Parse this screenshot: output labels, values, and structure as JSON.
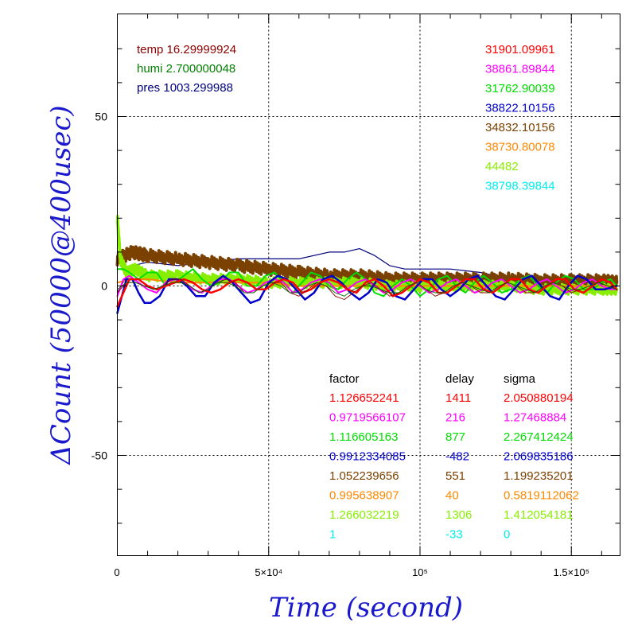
{
  "chart_data": {
    "type": "line",
    "xlabel": "Time (second)",
    "ylabel": "ΔCount (50000@400usec)",
    "xlim": [
      0,
      165000
    ],
    "ylim": [
      -80,
      80
    ],
    "x_ticks": [
      {
        "value": 0,
        "label": "0"
      },
      {
        "value": 50000,
        "label": "5×10⁴"
      },
      {
        "value": 100000,
        "label": "10⁵"
      },
      {
        "value": 150000,
        "label": "1.5×10⁵"
      }
    ],
    "y_ticks": [
      {
        "value": 50,
        "label": "50"
      },
      {
        "value": 0,
        "label": "0"
      },
      {
        "value": -50,
        "label": "-50"
      }
    ],
    "grid": true,
    "env": [
      {
        "text": "temp 16.29999924",
        "color": "#8b0000"
      },
      {
        "text": "humi 2.700000048",
        "color": "#008000"
      },
      {
        "text": "pres 1003.299988",
        "color": "#000080"
      }
    ],
    "means": [
      {
        "text": "31901.09961",
        "color": "#ff0000"
      },
      {
        "text": "38861.89844",
        "color": "#ff00ff"
      },
      {
        "text": "31762.90039",
        "color": "#00dd00"
      },
      {
        "text": "38822.10156",
        "color": "#0000cc"
      },
      {
        "text": "34832.10156",
        "color": "#7a4100"
      },
      {
        "text": "38730.80078",
        "color": "#ff8800"
      },
      {
        "text": "44482",
        "color": "#88ee00"
      },
      {
        "text": "38798.39844",
        "color": "#00eeee"
      }
    ],
    "table_headers": [
      "factor",
      "delay",
      "sigma"
    ],
    "table": [
      {
        "factor": "1.126652241",
        "delay": "1411",
        "sigma": "2.050880194",
        "color": "#ff0000"
      },
      {
        "factor": "0.9719566107",
        "delay": "216",
        "sigma": "1.27468884",
        "color": "#ff00ff"
      },
      {
        "factor": "1.116605163",
        "delay": "877",
        "sigma": "2.267412424",
        "color": "#00dd00"
      },
      {
        "factor": "0.9912334085",
        "delay": "-482",
        "sigma": "2.069835186",
        "color": "#0000cc"
      },
      {
        "factor": "1.052239656",
        "delay": "551",
        "sigma": "1.199235201",
        "color": "#7a4100"
      },
      {
        "factor": "0.995638907",
        "delay": "40",
        "sigma": "0.5819112062",
        "color": "#ff8800"
      },
      {
        "factor": "1.266032219",
        "delay": "1306",
        "sigma": "1.412054181",
        "color": "#88ee00"
      },
      {
        "factor": "1",
        "delay": "-33",
        "sigma": "0",
        "color": "#00eeee"
      }
    ],
    "series": [
      {
        "color": "#000080",
        "width": 1.2,
        "x": [
          0,
          5000,
          10000,
          20000,
          30000,
          40000,
          50000,
          60000,
          70000,
          75000,
          80000,
          85000,
          90000,
          95000,
          100000,
          110000,
          120000,
          130000,
          140000,
          150000,
          160000,
          165000
        ],
        "y": [
          -2,
          6,
          7,
          6,
          7,
          8,
          8,
          8,
          10,
          10,
          11,
          9,
          6,
          5,
          5,
          5,
          4,
          2,
          2,
          2,
          2,
          2
        ]
      },
      {
        "color": "#7a4100",
        "width": 4,
        "amp": 1.8,
        "x": [
          0,
          5000,
          10000,
          20000,
          30000,
          40000,
          50000,
          60000,
          70000,
          80000,
          90000,
          100000,
          110000,
          120000,
          130000,
          140000,
          150000,
          160000,
          165000
        ],
        "y": [
          8,
          10,
          9,
          8,
          7,
          6,
          5,
          4,
          3,
          3,
          2,
          2,
          2,
          2,
          2,
          1.5,
          1.5,
          1.5,
          1
        ]
      },
      {
        "color": "#88ee00",
        "width": 3.5,
        "amp": 1.5,
        "x": [
          0,
          1000,
          3000,
          6000,
          10000,
          20000,
          30000,
          40000,
          50000,
          60000,
          70000,
          80000,
          90000,
          100000,
          110000,
          120000,
          130000,
          140000,
          150000,
          160000,
          165000
        ],
        "y": [
          20,
          8,
          4,
          5,
          3,
          3,
          2,
          2,
          1,
          1,
          1,
          1,
          0,
          0,
          0,
          0,
          0,
          -1,
          -1,
          -1,
          -1
        ]
      },
      {
        "color": "#ff8800",
        "width": 2,
        "x": [
          0,
          5000,
          10000,
          20000,
          30000,
          40000,
          50000,
          60000,
          70000,
          80000,
          90000,
          100000,
          110000,
          120000,
          130000,
          140000,
          150000,
          160000,
          165000
        ],
        "y": [
          1,
          2,
          2,
          1,
          1,
          1,
          1,
          0,
          0,
          0,
          0,
          0,
          0,
          0,
          0,
          0,
          0,
          0,
          0
        ]
      },
      {
        "color": "#00dd00",
        "width": 2,
        "x": [
          0,
          2000,
          4000,
          7000,
          10000,
          13000,
          16000,
          19000,
          22000,
          25000,
          28000,
          31000,
          34000,
          37000,
          40000,
          43000,
          46000,
          49000,
          52000,
          55000,
          58000,
          61000,
          64000,
          67000,
          70000,
          73000,
          76000,
          79000,
          82000,
          85000,
          88000,
          91000,
          94000,
          97000,
          100000,
          103000,
          106000,
          109000,
          112000,
          115000,
          118000,
          121000,
          124000,
          127000,
          130000,
          133000,
          136000,
          139000,
          142000,
          145000,
          148000,
          151000,
          154000,
          157000,
          160000,
          163000,
          165000
        ],
        "y": [
          5,
          5,
          4,
          2,
          4,
          4,
          0,
          1,
          3,
          5,
          2,
          0,
          1,
          4,
          4,
          0,
          0,
          3,
          4,
          1,
          -2,
          1,
          4,
          3,
          0,
          -1,
          2,
          4,
          2,
          -2,
          -3,
          0,
          2,
          0,
          -3,
          -1,
          2,
          3,
          0,
          -2,
          1,
          3,
          1,
          -2,
          -1,
          2,
          3,
          0,
          -2,
          1,
          3,
          2,
          -1,
          -1,
          1,
          2,
          0
        ]
      },
      {
        "color": "#ff00ff",
        "width": 2,
        "x": [
          0,
          2000,
          4000,
          7000,
          10000,
          13000,
          16000,
          19000,
          22000,
          25000,
          28000,
          31000,
          34000,
          37000,
          40000,
          43000,
          46000,
          49000,
          52000,
          55000,
          58000,
          61000,
          64000,
          67000,
          70000,
          73000,
          76000,
          79000,
          82000,
          85000,
          88000,
          91000,
          94000,
          97000,
          100000,
          103000,
          106000,
          109000,
          112000,
          115000,
          118000,
          121000,
          124000,
          127000,
          130000,
          133000,
          136000,
          139000,
          142000,
          145000,
          148000,
          151000,
          154000,
          157000,
          160000,
          163000,
          165000
        ],
        "y": [
          -3,
          2,
          3,
          1,
          -1,
          -2,
          1,
          2,
          1,
          -1,
          -2,
          0,
          2,
          2,
          0,
          -2,
          -1,
          1,
          2,
          1,
          -2,
          -1,
          1,
          2,
          1,
          -2,
          -1,
          1,
          2,
          0,
          -2,
          -1,
          1,
          2,
          0,
          -2,
          -1,
          1,
          2,
          0,
          -2,
          -1,
          1,
          2,
          0,
          -2,
          -1,
          1,
          2,
          0,
          -2,
          -1,
          1,
          2,
          0,
          -1,
          -1
        ]
      },
      {
        "color": "#0000cc",
        "width": 2.5,
        "x": [
          0,
          1500,
          3000,
          5000,
          7000,
          9000,
          11000,
          14000,
          17000,
          20000,
          23000,
          26000,
          29000,
          32000,
          35000,
          38000,
          41000,
          44000,
          47000,
          50000,
          53000,
          56000,
          59000,
          62000,
          65000,
          68000,
          71000,
          74000,
          77000,
          80000,
          83000,
          86000,
          89000,
          92000,
          95000,
          98000,
          101000,
          104000,
          107000,
          110000,
          113000,
          116000,
          119000,
          122000,
          125000,
          128000,
          131000,
          134000,
          137000,
          140000,
          143000,
          146000,
          149000,
          152000,
          155000,
          158000,
          161000,
          165000
        ],
        "y": [
          -8,
          -3,
          2,
          2,
          -2,
          -5,
          -5,
          -3,
          2,
          2,
          0,
          -3,
          -3,
          1,
          3,
          1,
          -2,
          -5,
          -4,
          1,
          3,
          2,
          -1,
          -4,
          -2,
          2,
          3,
          1,
          -2,
          -4,
          -2,
          2,
          1,
          -3,
          -4,
          -1,
          2,
          2,
          -1,
          -3,
          -1,
          2,
          3,
          0,
          -3,
          -4,
          -1,
          2,
          3,
          0,
          -3,
          -4,
          0,
          3,
          2,
          -1,
          -1,
          0
        ]
      },
      {
        "color": "#ff0000",
        "width": 2.5,
        "x": [
          0,
          2000,
          4000,
          7000,
          10000,
          13000,
          16000,
          19000,
          22000,
          25000,
          28000,
          31000,
          34000,
          37000,
          40000,
          43000,
          46000,
          49000,
          52000,
          55000,
          58000,
          61000,
          64000,
          67000,
          70000,
          73000,
          76000,
          79000,
          82000,
          85000,
          88000,
          91000,
          94000,
          97000,
          100000,
          103000,
          106000,
          109000,
          112000,
          115000,
          118000,
          121000,
          124000,
          127000,
          130000,
          133000,
          136000,
          139000,
          142000,
          145000,
          148000,
          151000,
          154000,
          157000,
          160000,
          163000,
          165000
        ],
        "y": [
          -6,
          -2,
          2,
          2,
          0,
          -1,
          0,
          1,
          2,
          1,
          -1,
          -2,
          -1,
          1,
          2,
          1,
          -1,
          -1,
          1,
          2,
          1,
          -2,
          -1,
          1,
          2,
          1,
          -1,
          -2,
          1,
          2,
          0,
          -3,
          -2,
          0,
          2,
          1,
          -2,
          -2,
          0,
          2,
          2,
          -1,
          -2,
          0,
          2,
          2,
          -1,
          -2,
          0,
          2,
          2,
          -1,
          -2,
          0,
          2,
          1,
          -1
        ]
      },
      {
        "color": "#8b0000",
        "width": 0.9,
        "x": [
          0,
          3000,
          6000,
          9000,
          12000,
          15000,
          18000,
          21000,
          24000,
          27000,
          30000,
          33000,
          36000,
          39000,
          42000,
          45000,
          48000,
          51000,
          54000,
          57000,
          60000,
          63000,
          66000,
          69000,
          72000,
          75000,
          78000,
          81000,
          84000,
          87000,
          90000,
          93000,
          96000,
          99000,
          102000,
          105000,
          108000,
          111000,
          114000,
          117000,
          120000,
          123000,
          126000,
          129000,
          132000,
          135000,
          138000,
          141000,
          144000,
          147000,
          150000,
          153000,
          156000,
          159000,
          162000,
          165000
        ],
        "y": [
          -2,
          1,
          1,
          0,
          -1,
          0,
          2,
          2,
          0,
          -2,
          -1,
          1,
          2,
          1,
          -2,
          -2,
          0,
          1,
          1,
          -2,
          -3,
          -1,
          1,
          0,
          -3,
          -4,
          -2,
          0,
          1,
          -1,
          -3,
          -2,
          0,
          1,
          -1,
          -3,
          -2,
          0,
          1,
          0,
          -2,
          -2,
          0,
          1,
          0,
          -2,
          -2,
          0,
          1,
          0,
          -2,
          -1,
          0,
          1,
          0,
          -1
        ]
      },
      {
        "color": "#006400",
        "width": 0.9,
        "x": [
          0,
          3000,
          6000,
          9000,
          12000,
          15000,
          18000,
          21000,
          24000,
          27000,
          30000,
          33000,
          36000,
          39000,
          42000,
          45000,
          48000,
          51000,
          54000,
          57000,
          60000,
          63000,
          66000,
          69000,
          72000,
          75000,
          78000,
          81000,
          84000,
          87000,
          90000,
          93000,
          96000,
          99000,
          102000,
          105000,
          108000,
          111000,
          114000,
          117000,
          120000,
          123000,
          126000,
          129000,
          132000,
          135000,
          138000,
          141000,
          144000,
          147000,
          150000,
          153000,
          156000,
          159000,
          162000,
          165000
        ],
        "y": [
          -1,
          1,
          1,
          0,
          -1,
          0,
          1,
          1,
          0,
          -2,
          -1,
          1,
          1,
          0,
          -2,
          -2,
          0,
          1,
          0,
          -2,
          -2,
          0,
          1,
          0,
          -2,
          -3,
          -1,
          0,
          0,
          -1,
          -2,
          -2,
          0,
          1,
          -1,
          -2,
          -2,
          0,
          1,
          0,
          -1,
          -2,
          0,
          1,
          0,
          -1,
          -2,
          0,
          1,
          0,
          -1,
          -1,
          0,
          1,
          0,
          -1
        ]
      }
    ]
  }
}
